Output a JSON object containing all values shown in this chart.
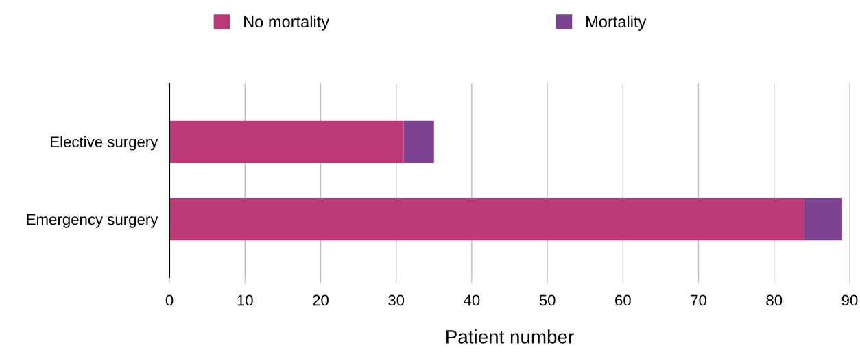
{
  "chart_data": {
    "type": "bar",
    "orientation": "horizontal",
    "stacked": true,
    "categories": [
      "Elective surgery",
      "Emergency surgery"
    ],
    "series": [
      {
        "name": "No mortality",
        "color": "#bc3a78",
        "values": [
          31,
          84
        ]
      },
      {
        "name": "Mortality",
        "color": "#7b4390",
        "values": [
          4,
          5
        ]
      }
    ],
    "xlabel": "Patient number",
    "xlim": [
      0,
      90
    ],
    "xticks": [
      0,
      10,
      20,
      30,
      40,
      50,
      60,
      70,
      80,
      90
    ],
    "grid": "x",
    "legend": "top"
  }
}
